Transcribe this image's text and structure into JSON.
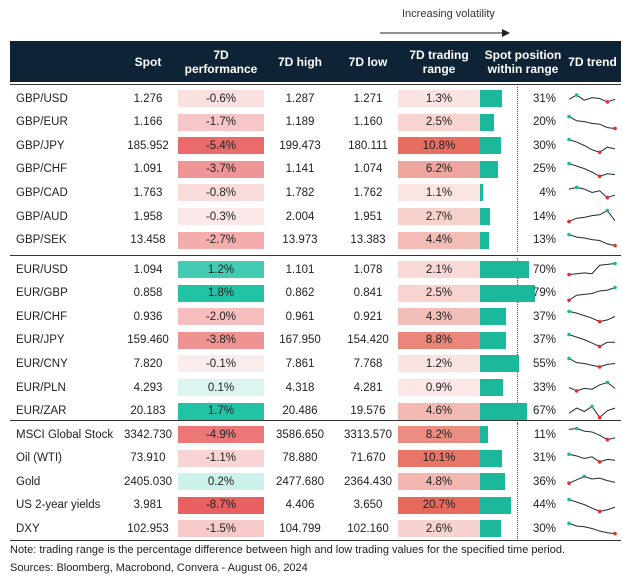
{
  "volatility_label": "Increasing volatility",
  "columns": [
    "Spot",
    "7D performance",
    "7D high",
    "7D low",
    "7D trading range",
    "Spot position within range",
    "7D trend"
  ],
  "groups": [
    [
      {
        "name": "GBP/USD",
        "spot": "1.276",
        "perf": "-0.6%",
        "perf_v": -0.6,
        "high": "1.287",
        "low": "1.271",
        "range": "1.3%",
        "range_v": 1.3,
        "pos": "31%",
        "pos_v": 31,
        "trend": [
          0.55,
          0.3,
          0.6,
          0.45,
          0.5,
          0.7,
          0.55
        ]
      },
      {
        "name": "GBP/EUR",
        "spot": "1.166",
        "perf": "-1.7%",
        "perf_v": -1.7,
        "high": "1.189",
        "low": "1.160",
        "range": "2.5%",
        "range_v": 2.5,
        "pos": "20%",
        "pos_v": 20,
        "trend": [
          0.15,
          0.4,
          0.45,
          0.55,
          0.6,
          0.8,
          0.85
        ]
      },
      {
        "name": "GBP/JPY",
        "spot": "185.952",
        "perf": "-5.4%",
        "perf_v": -5.4,
        "high": "199.473",
        "low": "180.111",
        "range": "10.8%",
        "range_v": 10.8,
        "pos": "30%",
        "pos_v": 30,
        "trend": [
          0.15,
          0.3,
          0.5,
          0.75,
          0.9,
          0.6,
          0.7
        ]
      },
      {
        "name": "GBP/CHF",
        "spot": "1.091",
        "perf": "-3.7%",
        "perf_v": -3.7,
        "high": "1.141",
        "low": "1.074",
        "range": "6.2%",
        "range_v": 6.2,
        "pos": "25%",
        "pos_v": 25,
        "trend": [
          0.15,
          0.3,
          0.45,
          0.65,
          0.9,
          0.75,
          0.8
        ]
      },
      {
        "name": "GBP/CAD",
        "spot": "1.763",
        "perf": "-0.8%",
        "perf_v": -0.8,
        "high": "1.782",
        "low": "1.762",
        "range": "1.1%",
        "range_v": 1.1,
        "pos": "4%",
        "pos_v": 4,
        "trend": [
          0.3,
          0.2,
          0.3,
          0.5,
          0.4,
          0.8,
          0.65
        ]
      },
      {
        "name": "GBP/AUD",
        "spot": "1.958",
        "perf": "-0.3%",
        "perf_v": -0.3,
        "high": "2.004",
        "low": "1.951",
        "range": "2.7%",
        "range_v": 2.7,
        "pos": "14%",
        "pos_v": 14,
        "trend": [
          0.8,
          0.6,
          0.55,
          0.45,
          0.4,
          0.15,
          0.75
        ]
      },
      {
        "name": "GBP/SEK",
        "spot": "13.458",
        "perf": "-2.7%",
        "perf_v": -2.7,
        "high": "13.973",
        "low": "13.383",
        "range": "4.4%",
        "range_v": 4.4,
        "pos": "13%",
        "pos_v": 13,
        "trend": [
          0.15,
          0.3,
          0.35,
          0.45,
          0.5,
          0.7,
          0.8
        ]
      }
    ],
    [
      {
        "name": "EUR/USD",
        "spot": "1.094",
        "perf": "1.2%",
        "perf_v": 1.2,
        "high": "1.101",
        "low": "1.078",
        "range": "2.1%",
        "range_v": 2.1,
        "pos": "70%",
        "pos_v": 70,
        "trend": [
          0.8,
          0.75,
          0.7,
          0.75,
          0.25,
          0.2,
          0.15
        ]
      },
      {
        "name": "EUR/GBP",
        "spot": "0.858",
        "perf": "1.8%",
        "perf_v": 1.8,
        "high": "0.862",
        "low": "0.841",
        "range": "2.5%",
        "range_v": 2.5,
        "pos": "79%",
        "pos_v": 79,
        "trend": [
          0.9,
          0.6,
          0.55,
          0.5,
          0.35,
          0.3,
          0.15
        ]
      },
      {
        "name": "EUR/CHF",
        "spot": "0.936",
        "perf": "-2.0%",
        "perf_v": -2.0,
        "high": "0.961",
        "low": "0.921",
        "range": "4.3%",
        "range_v": 4.3,
        "pos": "37%",
        "pos_v": 37,
        "trend": [
          0.2,
          0.3,
          0.45,
          0.6,
          0.8,
          0.7,
          0.5
        ]
      },
      {
        "name": "EUR/JPY",
        "spot": "159.460",
        "perf": "-3.8%",
        "perf_v": -3.8,
        "high": "167.950",
        "low": "154.420",
        "range": "8.8%",
        "range_v": 8.8,
        "pos": "37%",
        "pos_v": 37,
        "trend": [
          0.15,
          0.3,
          0.45,
          0.65,
          0.85,
          0.6,
          0.6
        ]
      },
      {
        "name": "EUR/CNY",
        "spot": "7.820",
        "perf": "-0.1%",
        "perf_v": -0.1,
        "high": "7.861",
        "low": "7.768",
        "range": "1.2%",
        "range_v": 1.2,
        "pos": "55%",
        "pos_v": 55,
        "trend": [
          0.2,
          0.45,
          0.5,
          0.6,
          0.7,
          0.55,
          0.5
        ]
      },
      {
        "name": "EUR/PLN",
        "spot": "4.293",
        "perf": "0.1%",
        "perf_v": 0.1,
        "high": "4.318",
        "low": "4.281",
        "range": "0.9%",
        "range_v": 0.9,
        "pos": "33%",
        "pos_v": 33,
        "trend": [
          0.5,
          0.7,
          0.55,
          0.6,
          0.35,
          0.2,
          0.55
        ]
      },
      {
        "name": "EUR/ZAR",
        "spot": "20.183",
        "perf": "1.7%",
        "perf_v": 1.7,
        "high": "20.486",
        "low": "19.576",
        "range": "4.6%",
        "range_v": 4.6,
        "pos": "67%",
        "pos_v": 67,
        "trend": [
          0.6,
          0.3,
          0.5,
          0.2,
          0.85,
          0.45,
          0.3
        ]
      }
    ],
    [
      {
        "name": "MSCI Global Stock",
        "spot": "3342.730",
        "perf": "-4.9%",
        "perf_v": -4.9,
        "high": "3586.650",
        "low": "3313.570",
        "range": "8.2%",
        "range_v": 8.2,
        "pos": "11%",
        "pos_v": 11,
        "trend": [
          0.2,
          0.15,
          0.3,
          0.35,
          0.55,
          0.8,
          0.7
        ]
      },
      {
        "name": "Oil (WTI)",
        "spot": "73.910",
        "perf": "-1.1%",
        "perf_v": -1.1,
        "high": "78.880",
        "low": "71.670",
        "range": "10.1%",
        "range_v": 10.1,
        "pos": "31%",
        "pos_v": 31,
        "trend": [
          0.25,
          0.35,
          0.5,
          0.4,
          0.7,
          0.55,
          0.6
        ]
      },
      {
        "name": "Gold",
        "spot": "2405.030",
        "perf": "0.2%",
        "perf_v": 0.2,
        "high": "2477.680",
        "low": "2364.430",
        "range": "4.8%",
        "range_v": 4.8,
        "pos": "36%",
        "pos_v": 36,
        "trend": [
          0.6,
          0.4,
          0.2,
          0.35,
          0.3,
          0.45,
          0.55
        ]
      },
      {
        "name": "US 2-year yields",
        "spot": "3.981",
        "perf": "-8.7%",
        "perf_v": -8.7,
        "high": "4.406",
        "low": "3.650",
        "range": "20.7%",
        "range_v": 20.7,
        "pos": "44%",
        "pos_v": 44,
        "trend": [
          0.15,
          0.3,
          0.45,
          0.65,
          0.85,
          0.75,
          0.6
        ]
      },
      {
        "name": "DXY",
        "spot": "102.953",
        "perf": "-1.5%",
        "perf_v": -1.5,
        "high": "104.799",
        "low": "102.160",
        "range": "2.6%",
        "range_v": 2.6,
        "pos": "30%",
        "pos_v": 30,
        "trend": [
          0.2,
          0.35,
          0.4,
          0.5,
          0.65,
          0.75,
          0.8
        ]
      }
    ]
  ],
  "note": "Note: trading range is the percentage difference between high and low trading values for the specified time period.",
  "sources": "Sources: Bloomberg, Macrobond, Convera - August 06, 2024",
  "colors": {
    "header_bg": "#0f2336",
    "teal": "#1cb89c",
    "red": "#e04b4b",
    "dot_teal": "#1cb89c",
    "dot_red": "#e03030"
  }
}
